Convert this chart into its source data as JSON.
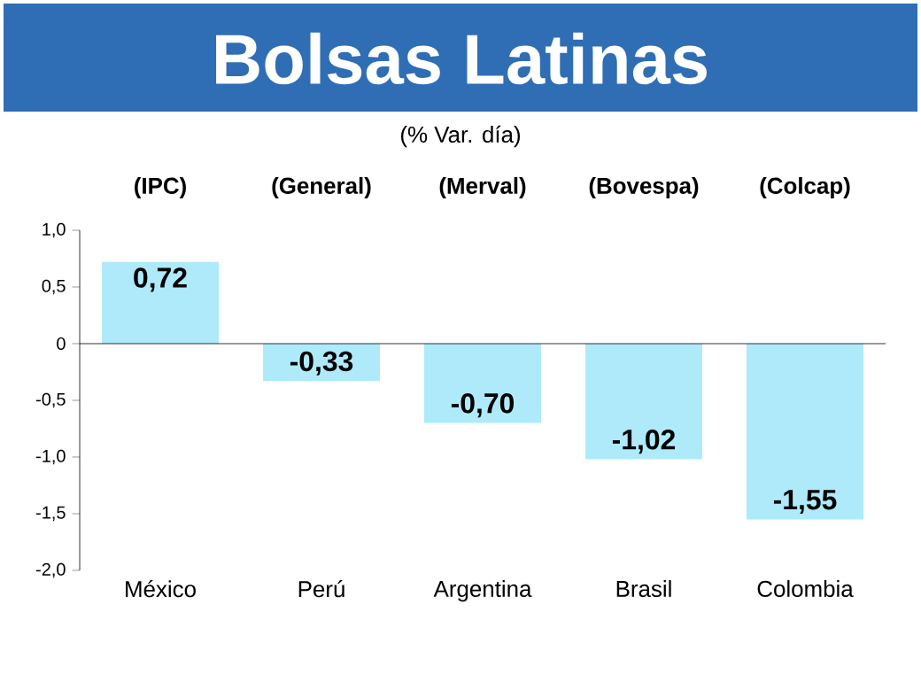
{
  "chart_data": {
    "type": "bar",
    "title": "Bolsas Latinas",
    "subtitle": "(% Var. día)",
    "annotations": [
      "(IPC)",
      "(General)",
      "(Merval)",
      "(Bovespa)",
      "(Colcap)"
    ],
    "categories": [
      "México",
      "Perú",
      "Argentina",
      "Brasil",
      "Colombia"
    ],
    "values": [
      0.72,
      -0.33,
      -0.7,
      -1.02,
      -1.55
    ],
    "value_labels": [
      "0,72",
      "-0,33",
      "-0,70",
      "-1,02",
      "-1,55"
    ],
    "color": "#aeeafa",
    "ylim": [
      -2.0,
      1.0
    ],
    "yticks": [
      {
        "value": -2.0,
        "label": "-2,0"
      },
      {
        "value": -1.5,
        "label": "-1,5"
      },
      {
        "value": -1.0,
        "label": "-1,0"
      },
      {
        "value": -0.5,
        "label": "-0,5"
      },
      0,
      {
        "value": 0.5,
        "label": "0,5"
      },
      {
        "value": 1.0,
        "label": "1,0"
      }
    ]
  }
}
